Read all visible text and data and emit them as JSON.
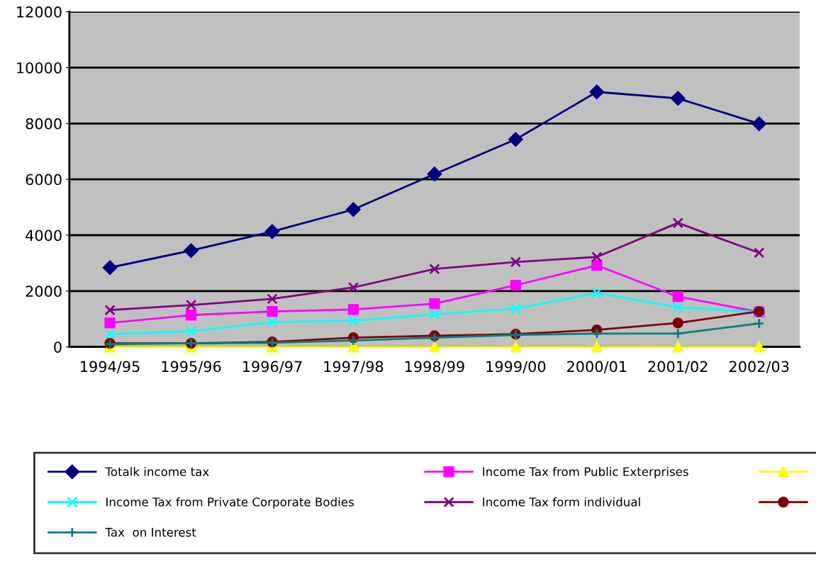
{
  "chart_data": {
    "type": "line",
    "categories": [
      "1994/95",
      "1995/96",
      "1996/97",
      "1997/98",
      "1998/99",
      "1999/00",
      "2000/01",
      "2001/02",
      "2002/03"
    ],
    "ylim": [
      0,
      12000
    ],
    "yticks": [
      0,
      2000,
      4000,
      6000,
      8000,
      10000,
      12000
    ],
    "grid": "y",
    "legend": "bottom",
    "line_style": "solid",
    "series": [
      {
        "name": "Totalk income tax",
        "color": "#000080",
        "marker": "diamond",
        "values": [
          2840,
          3450,
          4130,
          4920,
          6190,
          7430,
          9130,
          8900,
          7990
        ]
      },
      {
        "name": "Income Tax from Public Exterprises",
        "color": "#ff00ff",
        "marker": "square",
        "values": [
          860,
          1140,
          1270,
          1340,
          1550,
          2210,
          2920,
          1800,
          1250
        ]
      },
      {
        "color": "#ffff00",
        "marker": "triangle",
        "values": [
          0,
          0,
          0,
          0,
          0,
          0,
          0,
          0,
          0
        ]
      },
      {
        "name": "Income Tax from Private Corporate Bodies",
        "color": "#00ffff",
        "marker": "cross",
        "values": [
          460,
          560,
          890,
          940,
          1170,
          1370,
          1930,
          1420,
          1250
        ]
      },
      {
        "name": "Income Tax form individual",
        "color": "#800080",
        "marker": "cross",
        "values": [
          1320,
          1500,
          1720,
          2130,
          2790,
          3040,
          3220,
          4440,
          3370
        ]
      },
      {
        "color": "#800000",
        "marker": "circle",
        "values": [
          130,
          130,
          180,
          330,
          400,
          460,
          610,
          860,
          1270
        ]
      },
      {
        "name": "Tax  on Interest",
        "color": "#008080",
        "marker": "plus",
        "values": [
          100,
          130,
          150,
          230,
          330,
          430,
          480,
          480,
          840
        ]
      }
    ]
  }
}
